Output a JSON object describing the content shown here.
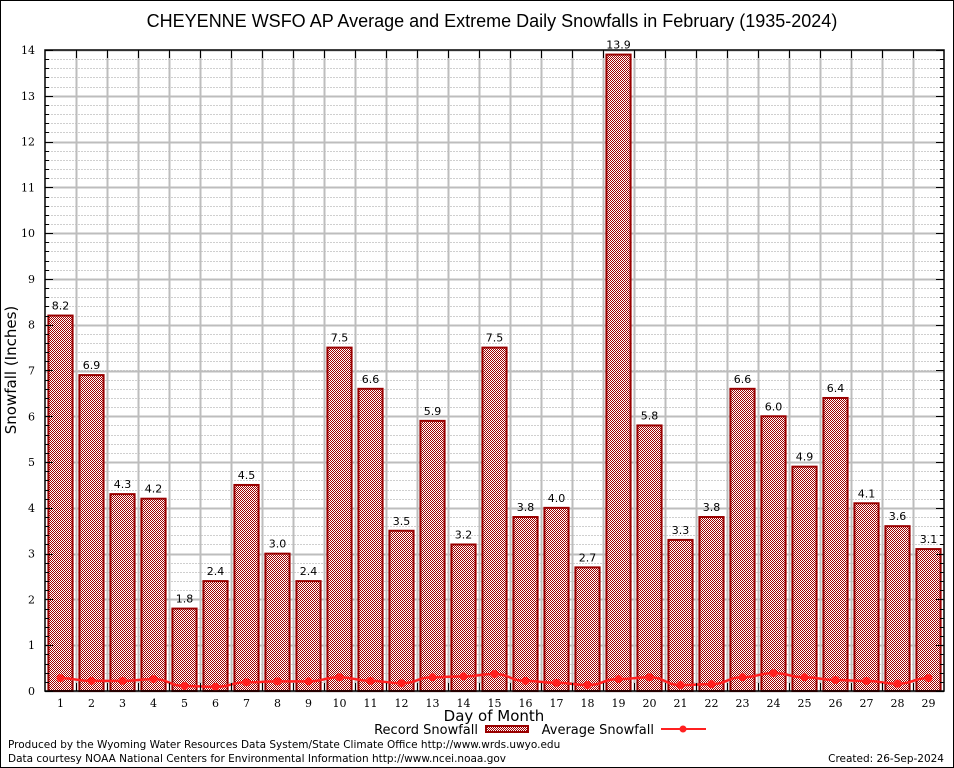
{
  "chart_data": {
    "type": "bar",
    "title": "CHEYENNE WSFO AP Average and Extreme Daily Snowfalls in February (1935-2024)",
    "xlabel": "Day of Month",
    "ylabel": "Snowfall (Inches)",
    "ylim": [
      0,
      14
    ],
    "yticks": [
      "0",
      "1",
      "2",
      "3",
      "4",
      "5",
      "6",
      "7",
      "8",
      "9",
      "10",
      "11",
      "12",
      "13",
      "14"
    ],
    "grid": true,
    "categories": [
      "1",
      "2",
      "3",
      "4",
      "5",
      "6",
      "7",
      "8",
      "9",
      "10",
      "11",
      "12",
      "13",
      "14",
      "15",
      "16",
      "17",
      "18",
      "19",
      "20",
      "21",
      "22",
      "23",
      "24",
      "25",
      "26",
      "27",
      "28",
      "29"
    ],
    "series": [
      {
        "name": "Record Snowfall",
        "kind": "bar",
        "color": "#990000",
        "values": [
          8.2,
          6.9,
          4.3,
          4.2,
          1.8,
          2.4,
          4.5,
          3.0,
          2.4,
          7.5,
          6.6,
          3.5,
          5.9,
          3.2,
          7.5,
          3.8,
          4.0,
          2.7,
          13.9,
          5.8,
          3.3,
          3.8,
          6.6,
          6.0,
          4.9,
          6.4,
          4.1,
          3.6,
          3.1
        ],
        "labels": [
          "8.2",
          "6.9",
          "4.3",
          "4.2",
          "1.8",
          "2.4",
          "4.5",
          "3.0",
          "2.4",
          "7.5",
          "6.6",
          "3.5",
          "5.9",
          "3.2",
          "7.5",
          "3.8",
          "4.0",
          "2.7",
          "13.9",
          "5.8",
          "3.3",
          "3.8",
          "6.6",
          "6.0",
          "4.9",
          "6.4",
          "4.1",
          "3.6",
          "3.1"
        ]
      },
      {
        "name": "Average Snowfall",
        "kind": "line",
        "color": "#ff2020",
        "values": [
          0.28,
          0.22,
          0.22,
          0.26,
          0.11,
          0.09,
          0.19,
          0.21,
          0.21,
          0.3,
          0.22,
          0.17,
          0.3,
          0.32,
          0.37,
          0.22,
          0.18,
          0.13,
          0.26,
          0.3,
          0.13,
          0.15,
          0.3,
          0.39,
          0.3,
          0.24,
          0.22,
          0.16,
          0.28
        ]
      }
    ],
    "legend": {
      "placement": "bottom",
      "entries": [
        "Record Snowfall",
        "Average Snowfall"
      ]
    }
  },
  "footer": {
    "produced_by": "Produced by the Wyoming Water Resources Data System/State Climate Office http://www.wrds.uwyo.edu",
    "data_courtesy": "Data courtesy NOAA National Centers for Environmental Information http://www.ncei.noaa.gov",
    "created": "Created: 26-Sep-2024"
  }
}
